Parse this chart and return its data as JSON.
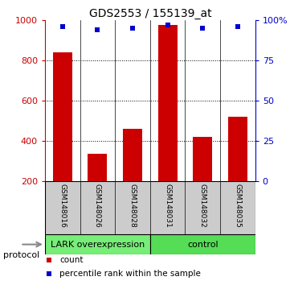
{
  "title": "GDS2553 / 155139_at",
  "categories": [
    "GSM148016",
    "GSM148026",
    "GSM148028",
    "GSM148031",
    "GSM148032",
    "GSM148035"
  ],
  "bar_values": [
    840,
    335,
    460,
    975,
    420,
    520
  ],
  "bar_bottom": 200,
  "percentile_ranks": [
    96,
    94,
    95,
    97,
    95,
    96
  ],
  "bar_color": "#cc0000",
  "dot_color": "#0000cc",
  "ylim_left": [
    200,
    1000
  ],
  "ylim_right": [
    0,
    100
  ],
  "yticks_left": [
    200,
    400,
    600,
    800,
    1000
  ],
  "yticks_right": [
    0,
    25,
    50,
    75,
    100
  ],
  "yticklabels_right": [
    "0",
    "25",
    "50",
    "75",
    "100%"
  ],
  "groups": [
    {
      "label": "LARK overexpression",
      "color": "#77ee77",
      "indices": [
        0,
        1,
        2
      ]
    },
    {
      "label": "control",
      "color": "#77ee77",
      "indices": [
        3,
        4,
        5
      ]
    }
  ],
  "protocol_label": "protocol",
  "legend_items": [
    {
      "label": "count",
      "color": "#cc0000"
    },
    {
      "label": "percentile rank within the sample",
      "color": "#0000cc"
    }
  ],
  "tick_label_color_left": "#cc0000",
  "tick_label_color_right": "#0000cc",
  "bar_width": 0.55
}
